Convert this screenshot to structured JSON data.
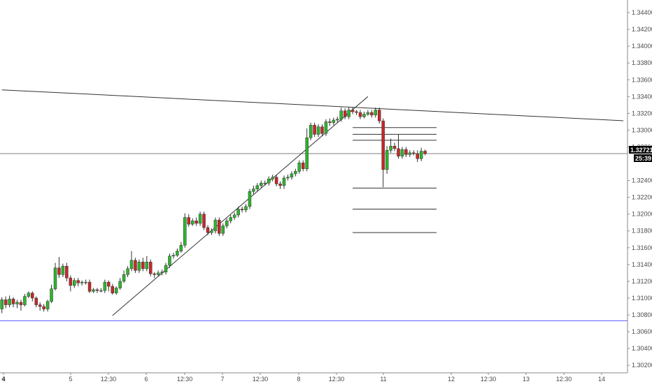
{
  "chart_data": {
    "type": "candlestick",
    "y_axis_ticks": [
      "1.34400",
      "1.34200",
      "1.34000",
      "1.33800",
      "1.33600",
      "1.33400",
      "1.33200",
      "1.33000",
      "1.32800",
      "1.32400",
      "1.32200",
      "1.32000",
      "1.31800",
      "1.31600",
      "1.31400",
      "1.31200",
      "1.31000",
      "1.30800",
      "1.30600",
      "1.30400",
      "1.30200"
    ],
    "ylim": [
      1.3011,
      1.3455
    ],
    "x_axis_ticks": [
      "4",
      "5",
      "12:30",
      "6",
      "12:30",
      "7",
      "12:30",
      "8",
      "12:30",
      "11",
      "12",
      "12:30",
      "13",
      "12:30",
      "14"
    ],
    "bars_total": 164,
    "current_price": "1.32721",
    "countdown": "25:39",
    "colors": {
      "up": "#2db52d",
      "down": "#c62828",
      "wick": "#333333",
      "support": "#5b5bff",
      "price_line": "#555555",
      "price_box": "#000000"
    },
    "candles": [
      [
        1.3087,
        1.3098,
        1.3101,
        1.3082
      ],
      [
        1.3098,
        1.3092,
        1.3102,
        1.3088
      ],
      [
        1.3092,
        1.3099,
        1.3103,
        1.3089
      ],
      [
        1.3099,
        1.3093,
        1.3101,
        1.3089
      ],
      [
        1.3093,
        1.3095,
        1.3098,
        1.3088
      ],
      [
        1.3095,
        1.3092,
        1.3098,
        1.3085
      ],
      [
        1.3092,
        1.3102,
        1.3105,
        1.309
      ],
      [
        1.3102,
        1.3106,
        1.3108,
        1.31
      ],
      [
        1.3106,
        1.31,
        1.3108,
        1.3096
      ],
      [
        1.31,
        1.3092,
        1.3102,
        1.3089
      ],
      [
        1.3092,
        1.309,
        1.3095,
        1.3085
      ],
      [
        1.309,
        1.3087,
        1.3093,
        1.3084
      ],
      [
        1.3087,
        1.3096,
        1.3098,
        1.3084
      ],
      [
        1.3096,
        1.3111,
        1.3116,
        1.3094
      ],
      [
        1.3111,
        1.3136,
        1.3142,
        1.3109
      ],
      [
        1.3136,
        1.3128,
        1.3149,
        1.3124
      ],
      [
        1.3128,
        1.3138,
        1.3141,
        1.3125
      ],
      [
        1.3138,
        1.3124,
        1.3142,
        1.312
      ],
      [
        1.3124,
        1.3115,
        1.3127,
        1.3108
      ],
      [
        1.3115,
        1.3121,
        1.3124,
        1.3112
      ],
      [
        1.3121,
        1.3118,
        1.3124,
        1.3114
      ],
      [
        1.3118,
        1.3119,
        1.3121,
        1.3115
      ],
      [
        1.3119,
        1.3119,
        1.3122,
        1.3116
      ],
      [
        1.3119,
        1.3108,
        1.3122,
        1.3106
      ],
      [
        1.3108,
        1.311,
        1.3112,
        1.3106
      ],
      [
        1.311,
        1.3109,
        1.3112,
        1.3106
      ],
      [
        1.3109,
        1.3109,
        1.3112,
        1.3107
      ],
      [
        1.3109,
        1.3119,
        1.3122,
        1.3106
      ],
      [
        1.3119,
        1.3114,
        1.3121,
        1.3108
      ],
      [
        1.3114,
        1.3106,
        1.3117,
        1.3104
      ],
      [
        1.3106,
        1.3112,
        1.3114,
        1.3104
      ],
      [
        1.3112,
        1.312,
        1.3124,
        1.311
      ],
      [
        1.312,
        1.3128,
        1.3133,
        1.3118
      ],
      [
        1.3128,
        1.3135,
        1.3138,
        1.3125
      ],
      [
        1.3135,
        1.3145,
        1.3156,
        1.3132
      ],
      [
        1.3145,
        1.3133,
        1.3148,
        1.313
      ],
      [
        1.3133,
        1.3143,
        1.3146,
        1.313
      ],
      [
        1.3143,
        1.3135,
        1.3148,
        1.3132
      ],
      [
        1.3135,
        1.3143,
        1.315,
        1.3132
      ],
      [
        1.3143,
        1.3129,
        1.3146,
        1.3126
      ],
      [
        1.3129,
        1.3128,
        1.3131,
        1.3124
      ],
      [
        1.3128,
        1.313,
        1.3133,
        1.3126
      ],
      [
        1.313,
        1.3131,
        1.3134,
        1.3127
      ],
      [
        1.3131,
        1.3139,
        1.3142,
        1.3128
      ],
      [
        1.3139,
        1.315,
        1.3153,
        1.3136
      ],
      [
        1.315,
        1.3151,
        1.3154,
        1.3147
      ],
      [
        1.3151,
        1.3156,
        1.3159,
        1.3149
      ],
      [
        1.3156,
        1.3163,
        1.3167,
        1.3154
      ],
      [
        1.3163,
        1.3196,
        1.3201,
        1.316
      ],
      [
        1.3196,
        1.3188,
        1.32,
        1.3185
      ],
      [
        1.3188,
        1.3192,
        1.3195,
        1.3186
      ],
      [
        1.3192,
        1.3189,
        1.3196,
        1.3186
      ],
      [
        1.3189,
        1.32,
        1.3203,
        1.3186
      ],
      [
        1.32,
        1.3184,
        1.3203,
        1.3181
      ],
      [
        1.3184,
        1.3178,
        1.3187,
        1.3175
      ],
      [
        1.3178,
        1.318,
        1.3183,
        1.3175
      ],
      [
        1.318,
        1.3193,
        1.3196,
        1.3177
      ],
      [
        1.3193,
        1.3177,
        1.3196,
        1.3174
      ],
      [
        1.3177,
        1.3186,
        1.3189,
        1.3174
      ],
      [
        1.3186,
        1.3192,
        1.3195,
        1.3183
      ],
      [
        1.3192,
        1.3196,
        1.3199,
        1.3189
      ],
      [
        1.3196,
        1.3199,
        1.3202,
        1.3193
      ],
      [
        1.3199,
        1.3206,
        1.3209,
        1.3196
      ],
      [
        1.3206,
        1.3205,
        1.3209,
        1.3202
      ],
      [
        1.3205,
        1.3209,
        1.3212,
        1.3202
      ],
      [
        1.3209,
        1.3227,
        1.323,
        1.3206
      ],
      [
        1.3227,
        1.323,
        1.3234,
        1.3224
      ],
      [
        1.323,
        1.3234,
        1.3237,
        1.3227
      ],
      [
        1.3234,
        1.3237,
        1.324,
        1.3231
      ],
      [
        1.3237,
        1.3237,
        1.324,
        1.3234
      ],
      [
        1.3237,
        1.3242,
        1.3245,
        1.3234
      ],
      [
        1.3242,
        1.3244,
        1.3247,
        1.3239
      ],
      [
        1.3244,
        1.3236,
        1.3247,
        1.3233
      ],
      [
        1.3236,
        1.3234,
        1.3239,
        1.323
      ],
      [
        1.3234,
        1.3243,
        1.3246,
        1.323
      ],
      [
        1.3243,
        1.3244,
        1.3247,
        1.324
      ],
      [
        1.3244,
        1.3248,
        1.3251,
        1.3241
      ],
      [
        1.3248,
        1.3251,
        1.3254,
        1.3245
      ],
      [
        1.3251,
        1.3261,
        1.3264,
        1.3248
      ],
      [
        1.3261,
        1.3254,
        1.3264,
        1.3251
      ],
      [
        1.3254,
        1.3291,
        1.3302,
        1.3251
      ],
      [
        1.3291,
        1.3306,
        1.3309,
        1.3288
      ],
      [
        1.3306,
        1.3295,
        1.3309,
        1.3292
      ],
      [
        1.3295,
        1.3304,
        1.3307,
        1.3292
      ],
      [
        1.3304,
        1.3296,
        1.3307,
        1.3293
      ],
      [
        1.3296,
        1.331,
        1.3313,
        1.3293
      ],
      [
        1.331,
        1.3309,
        1.3314,
        1.3305
      ],
      [
        1.3309,
        1.3312,
        1.3315,
        1.3306
      ],
      [
        1.3312,
        1.3313,
        1.3316,
        1.3309
      ],
      [
        1.3313,
        1.3323,
        1.3327,
        1.331
      ],
      [
        1.3323,
        1.3316,
        1.3326,
        1.3313
      ],
      [
        1.3316,
        1.3324,
        1.3327,
        1.3313
      ],
      [
        1.3324,
        1.3322,
        1.3327,
        1.3319
      ],
      [
        1.3322,
        1.3321,
        1.3324,
        1.3318
      ],
      [
        1.3321,
        1.3316,
        1.3324,
        1.3313
      ],
      [
        1.3316,
        1.3319,
        1.3322,
        1.3314
      ],
      [
        1.3319,
        1.3321,
        1.3324,
        1.3317
      ],
      [
        1.3321,
        1.3318,
        1.3324,
        1.3315
      ],
      [
        1.3318,
        1.3324,
        1.3327,
        1.3315
      ],
      [
        1.3324,
        1.3311,
        1.3327,
        1.3308
      ],
      [
        1.3311,
        1.3253,
        1.3314,
        1.3232
      ],
      [
        1.3253,
        1.3276,
        1.3281,
        1.3248
      ],
      [
        1.3276,
        1.3281,
        1.329,
        1.3273
      ],
      [
        1.3281,
        1.3278,
        1.3285,
        1.3275
      ],
      [
        1.3278,
        1.3269,
        1.3295,
        1.3266
      ],
      [
        1.3269,
        1.3277,
        1.328,
        1.3266
      ],
      [
        1.3277,
        1.3271,
        1.328,
        1.3268
      ],
      [
        1.3271,
        1.3273,
        1.3276,
        1.3268
      ],
      [
        1.3273,
        1.3272,
        1.3276,
        1.327
      ],
      [
        1.3272,
        1.3266,
        1.3276,
        1.3262
      ],
      [
        1.3266,
        1.3275,
        1.3279,
        1.3263
      ],
      [
        1.3275,
        1.3272,
        1.3277,
        1.327
      ]
    ],
    "trendlines": {
      "resistance": [
        [
          0,
          1.3348
        ],
        [
          163,
          1.33112
        ]
      ],
      "rising_support": [
        [
          29,
          1.30792
        ],
        [
          96,
          1.334
        ]
      ]
    },
    "horizontal_levels": [
      {
        "price": 1.3303,
        "from": 92,
        "to": 114
      },
      {
        "price": 1.3295,
        "from": 92,
        "to": 114
      },
      {
        "price": 1.3288,
        "from": 92,
        "to": 114
      },
      {
        "price": 1.3231,
        "from": 92,
        "to": 114
      },
      {
        "price": 1.3206,
        "from": 92,
        "to": 114
      },
      {
        "price": 1.3178,
        "from": 92,
        "to": 114
      }
    ],
    "support_line": 1.3073
  }
}
